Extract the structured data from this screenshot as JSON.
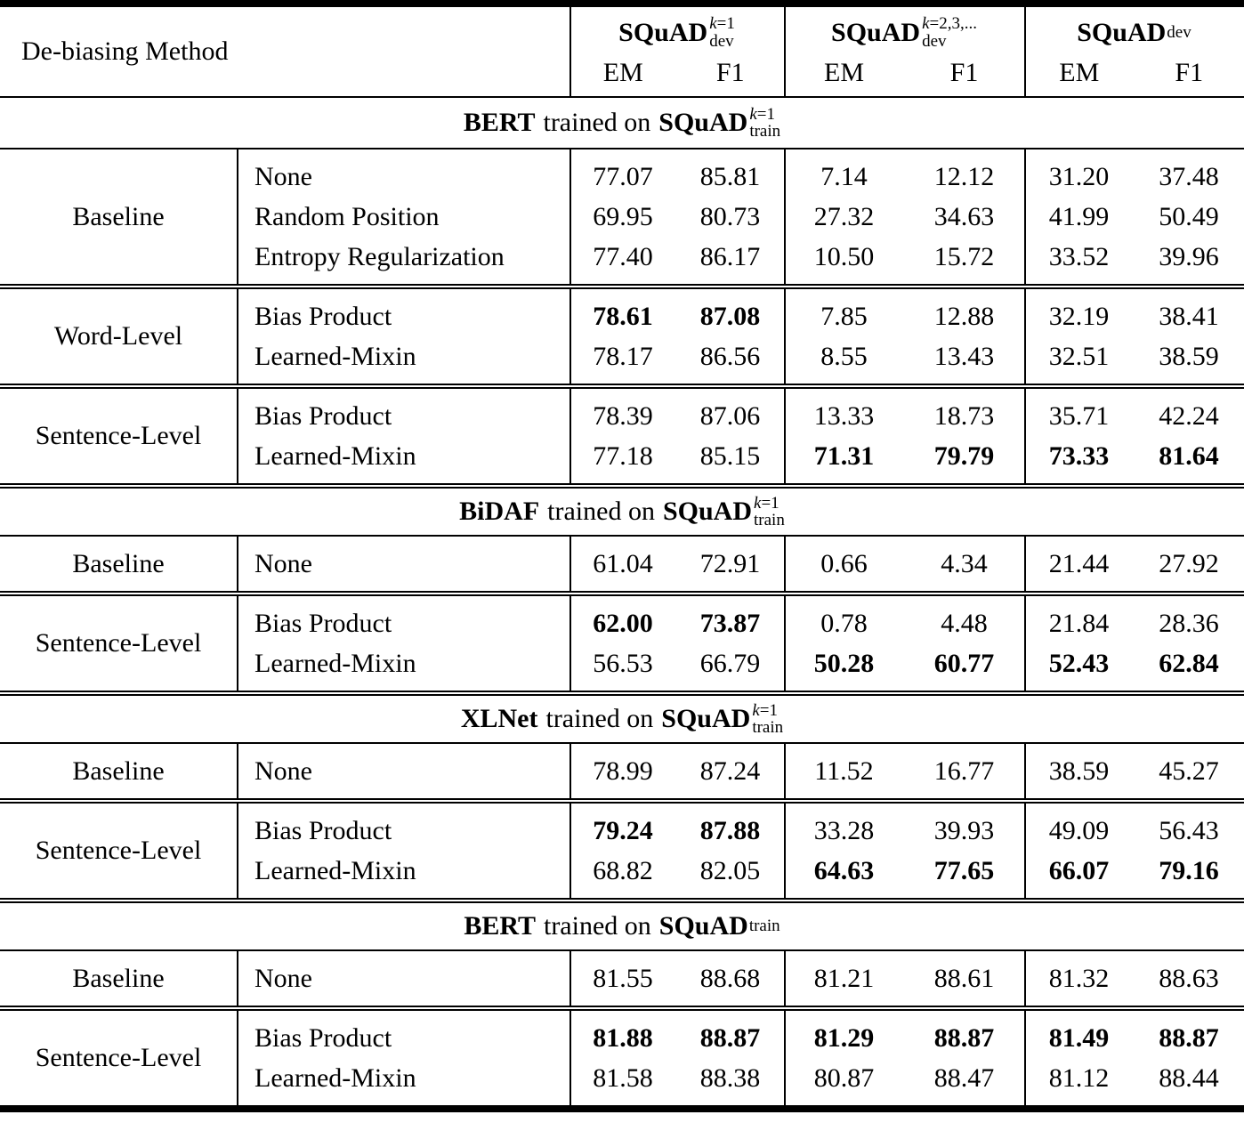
{
  "table": {
    "header": {
      "method_label": "De-biasing Method",
      "metric_labels": [
        "EM",
        "F1"
      ],
      "groups": [
        {
          "name": "SQuAD",
          "sup_italic": "k",
          "sup_rest": "=1",
          "sub": "dev"
        },
        {
          "name": "SQuAD",
          "sup_italic": "k",
          "sup_rest": "=2,3,...",
          "sub": "dev"
        },
        {
          "name": "SQuAD",
          "sup_italic": "",
          "sup_rest": "",
          "sub": "dev"
        }
      ]
    },
    "sections": [
      {
        "title": {
          "model": "BERT",
          "connector": "trained on",
          "dataset": "SQuAD",
          "sup_italic": "k",
          "sup_rest": "=1",
          "sub": "train"
        },
        "groups": [
          {
            "category": "Baseline",
            "rows": [
              {
                "method": "None",
                "values": [
                  "77.07",
                  "85.81",
                  "7.14",
                  "12.12",
                  "31.20",
                  "37.48"
                ],
                "bold": [
                  0,
                  0,
                  0,
                  0,
                  0,
                  0
                ]
              },
              {
                "method": "Random Position",
                "values": [
                  "69.95",
                  "80.73",
                  "27.32",
                  "34.63",
                  "41.99",
                  "50.49"
                ],
                "bold": [
                  0,
                  0,
                  0,
                  0,
                  0,
                  0
                ]
              },
              {
                "method": "Entropy Regularization",
                "values": [
                  "77.40",
                  "86.17",
                  "10.50",
                  "15.72",
                  "33.52",
                  "39.96"
                ],
                "bold": [
                  0,
                  0,
                  0,
                  0,
                  0,
                  0
                ]
              }
            ]
          },
          {
            "category": "Word-Level",
            "rows": [
              {
                "method": "Bias Product",
                "values": [
                  "78.61",
                  "87.08",
                  "7.85",
                  "12.88",
                  "32.19",
                  "38.41"
                ],
                "bold": [
                  1,
                  1,
                  0,
                  0,
                  0,
                  0
                ]
              },
              {
                "method": "Learned-Mixin",
                "values": [
                  "78.17",
                  "86.56",
                  "8.55",
                  "13.43",
                  "32.51",
                  "38.59"
                ],
                "bold": [
                  0,
                  0,
                  0,
                  0,
                  0,
                  0
                ]
              }
            ]
          },
          {
            "category": "Sentence-Level",
            "rows": [
              {
                "method": "Bias Product",
                "values": [
                  "78.39",
                  "87.06",
                  "13.33",
                  "18.73",
                  "35.71",
                  "42.24"
                ],
                "bold": [
                  0,
                  0,
                  0,
                  0,
                  0,
                  0
                ]
              },
              {
                "method": "Learned-Mixin",
                "values": [
                  "77.18",
                  "85.15",
                  "71.31",
                  "79.79",
                  "73.33",
                  "81.64"
                ],
                "bold": [
                  0,
                  0,
                  1,
                  1,
                  1,
                  1
                ]
              }
            ]
          }
        ]
      },
      {
        "title": {
          "model": "BiDAF",
          "connector": "trained on",
          "dataset": "SQuAD",
          "sup_italic": "k",
          "sup_rest": "=1",
          "sub": "train"
        },
        "groups": [
          {
            "category": "Baseline",
            "rows": [
              {
                "method": "None",
                "values": [
                  "61.04",
                  "72.91",
                  "0.66",
                  "4.34",
                  "21.44",
                  "27.92"
                ],
                "bold": [
                  0,
                  0,
                  0,
                  0,
                  0,
                  0
                ]
              }
            ]
          },
          {
            "category": "Sentence-Level",
            "rows": [
              {
                "method": "Bias Product",
                "values": [
                  "62.00",
                  "73.87",
                  "0.78",
                  "4.48",
                  "21.84",
                  "28.36"
                ],
                "bold": [
                  1,
                  1,
                  0,
                  0,
                  0,
                  0
                ]
              },
              {
                "method": "Learned-Mixin",
                "values": [
                  "56.53",
                  "66.79",
                  "50.28",
                  "60.77",
                  "52.43",
                  "62.84"
                ],
                "bold": [
                  0,
                  0,
                  1,
                  1,
                  1,
                  1
                ]
              }
            ]
          }
        ]
      },
      {
        "title": {
          "model": "XLNet",
          "connector": "trained on",
          "dataset": "SQuAD",
          "sup_italic": "k",
          "sup_rest": "=1",
          "sub": "train"
        },
        "groups": [
          {
            "category": "Baseline",
            "rows": [
              {
                "method": "None",
                "values": [
                  "78.99",
                  "87.24",
                  "11.52",
                  "16.77",
                  "38.59",
                  "45.27"
                ],
                "bold": [
                  0,
                  0,
                  0,
                  0,
                  0,
                  0
                ]
              }
            ]
          },
          {
            "category": "Sentence-Level",
            "rows": [
              {
                "method": "Bias Product",
                "values": [
                  "79.24",
                  "87.88",
                  "33.28",
                  "39.93",
                  "49.09",
                  "56.43"
                ],
                "bold": [
                  1,
                  1,
                  0,
                  0,
                  0,
                  0
                ]
              },
              {
                "method": "Learned-Mixin",
                "values": [
                  "68.82",
                  "82.05",
                  "64.63",
                  "77.65",
                  "66.07",
                  "79.16"
                ],
                "bold": [
                  0,
                  0,
                  1,
                  1,
                  1,
                  1
                ]
              }
            ]
          }
        ]
      },
      {
        "title": {
          "model": "BERT",
          "connector": "trained on",
          "dataset": "SQuAD",
          "sup_italic": "",
          "sup_rest": "",
          "sub": "train"
        },
        "groups": [
          {
            "category": "Baseline",
            "rows": [
              {
                "method": "None",
                "values": [
                  "81.55",
                  "88.68",
                  "81.21",
                  "88.61",
                  "81.32",
                  "88.63"
                ],
                "bold": [
                  0,
                  0,
                  0,
                  0,
                  0,
                  0
                ]
              }
            ]
          },
          {
            "category": "Sentence-Level",
            "rows": [
              {
                "method": "Bias Product",
                "values": [
                  "81.88",
                  "88.87",
                  "81.29",
                  "88.87",
                  "81.49",
                  "88.87"
                ],
                "bold": [
                  1,
                  1,
                  1,
                  1,
                  1,
                  1
                ]
              },
              {
                "method": "Learned-Mixin",
                "values": [
                  "81.58",
                  "88.38",
                  "80.87",
                  "88.47",
                  "81.12",
                  "88.44"
                ],
                "bold": [
                  0,
                  0,
                  0,
                  0,
                  0,
                  0
                ]
              }
            ]
          }
        ]
      }
    ]
  }
}
